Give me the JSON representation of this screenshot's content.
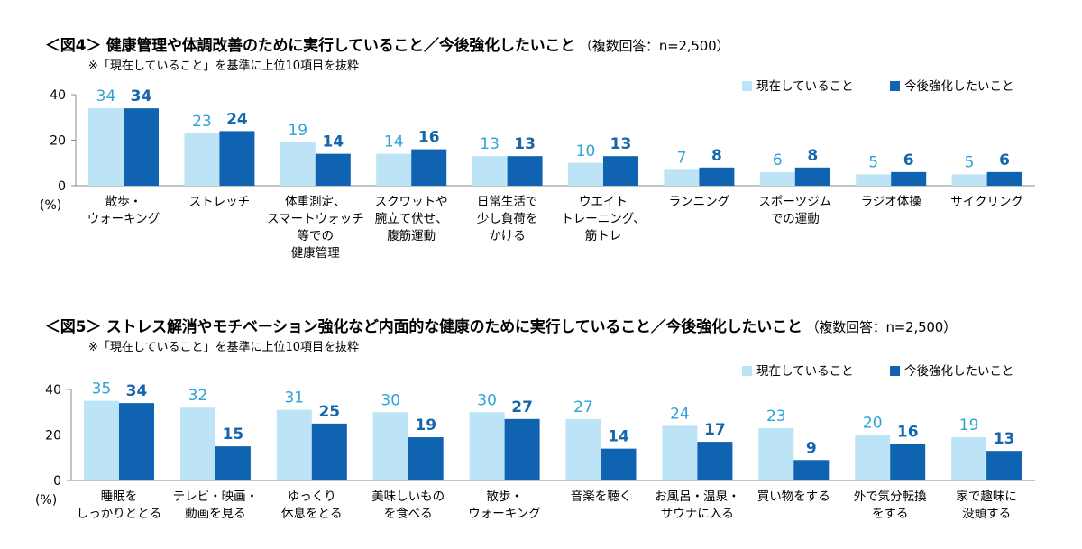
{
  "colors": {
    "current": "#bde3f6",
    "future": "#0f63b1",
    "current_label": "#2ea3d6",
    "future_label": "#1566ad"
  },
  "chart_data": [
    {
      "type": "bar",
      "title": "＜図4＞ 健康管理や体調改善のために実行していること／今後強化したいこと",
      "title_note": "（複数回答：n=2,500）",
      "subnote": "※「現在していること」を基準に上位10項目を抜粋",
      "ylabel": "(%)",
      "ylim": [
        0,
        40
      ],
      "yticks": [
        "40",
        "20",
        "0"
      ],
      "legend_position": "top-right",
      "categories": [
        [
          "散歩・",
          "ウォーキング"
        ],
        [
          "ストレッチ"
        ],
        [
          "体重測定、",
          "スマートウォッチ",
          "等での",
          "健康管理"
        ],
        [
          "スクワットや",
          "腕立て伏せ、",
          "腹筋運動"
        ],
        [
          "日常生活で",
          "少し負荷を",
          "かける"
        ],
        [
          "ウエイト",
          "トレーニング、",
          "筋トレ"
        ],
        [
          "ランニング"
        ],
        [
          "スポーツジム",
          "での運動"
        ],
        [
          "ラジオ体操"
        ],
        [
          "サイクリング"
        ]
      ],
      "series": [
        {
          "name": "現在していること",
          "values": [
            34,
            23,
            19,
            14,
            13,
            10,
            7,
            6,
            5,
            5
          ]
        },
        {
          "name": "今後強化したいこと",
          "values": [
            34,
            24,
            14,
            16,
            13,
            13,
            8,
            8,
            6,
            6
          ]
        }
      ]
    },
    {
      "type": "bar",
      "title": "＜図5＞ ストレス解消やモチベーション強化など内面的な健康のために実行していること／今後強化したいこと",
      "title_note": "（複数回答：n=2,500）",
      "subnote": "※「現在していること」を基準に上位10項目を抜粋",
      "ylabel": "(%)",
      "ylim": [
        0,
        40
      ],
      "yticks": [
        "40",
        "20",
        "0"
      ],
      "legend_position": "top-right",
      "categories": [
        [
          "睡眠を",
          "しっかりととる"
        ],
        [
          "テレビ・映画・",
          "動画を見る"
        ],
        [
          "ゆっくり",
          "休息をとる"
        ],
        [
          "美味しいもの",
          "を食べる"
        ],
        [
          "散歩・",
          "ウォーキング"
        ],
        [
          "音楽を聴く"
        ],
        [
          "お風呂・温泉・",
          "サウナに入る"
        ],
        [
          "買い物をする"
        ],
        [
          "外で気分転換",
          "をする"
        ],
        [
          "家で趣味に",
          "没頭する"
        ]
      ],
      "series": [
        {
          "name": "現在していること",
          "values": [
            35,
            32,
            31,
            30,
            30,
            27,
            24,
            23,
            20,
            19
          ]
        },
        {
          "name": "今後強化したいこと",
          "values": [
            34,
            15,
            25,
            19,
            27,
            14,
            17,
            9,
            16,
            13
          ]
        }
      ]
    }
  ]
}
